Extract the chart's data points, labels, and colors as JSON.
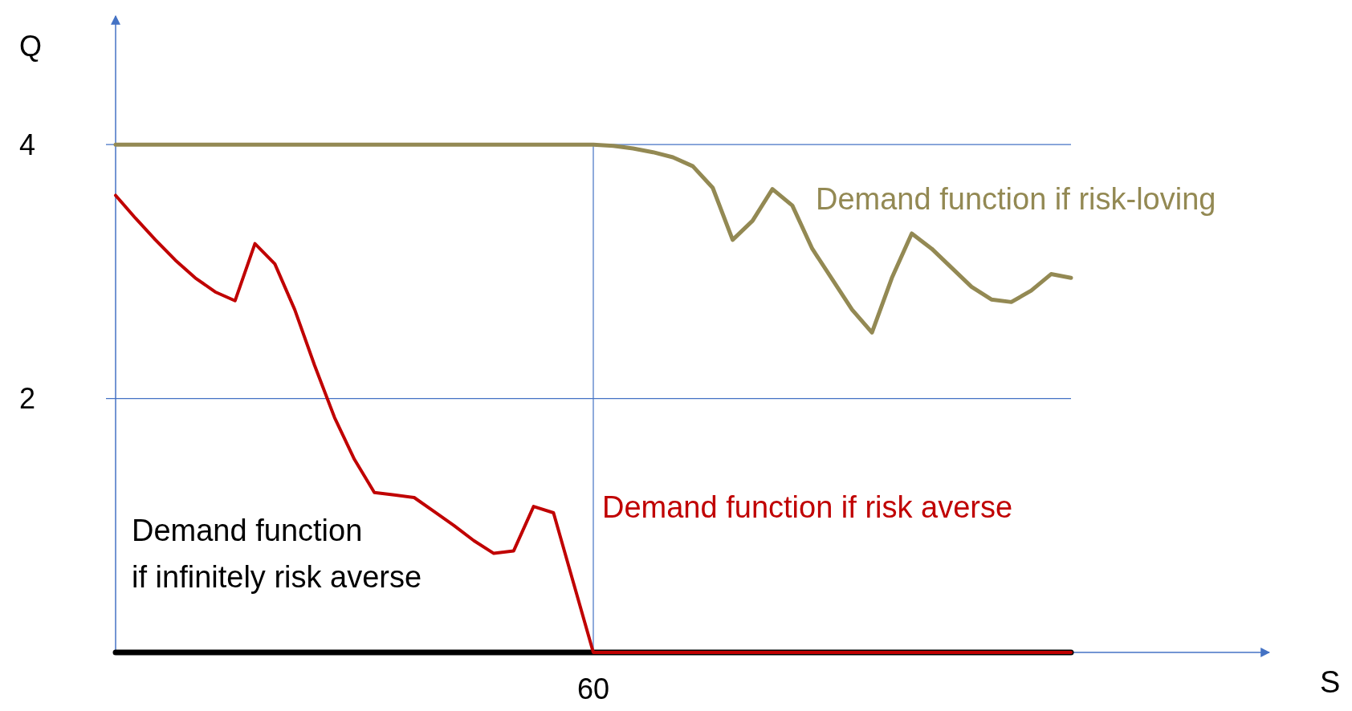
{
  "chart_data": {
    "type": "line",
    "ylabel": "Q",
    "ylim": [
      0,
      5
    ],
    "yticks": [
      2,
      4
    ],
    "grid": "y",
    "line_style": "solid",
    "categories": [
      null,
      null,
      null,
      null,
      null,
      null,
      null,
      null,
      null,
      null,
      null,
      null,
      null,
      null,
      null,
      null,
      null,
      null,
      null,
      null,
      null,
      null,
      null,
      null,
      "60",
      null,
      null,
      null,
      null,
      null,
      null,
      null,
      null,
      null,
      null,
      null,
      null,
      null,
      null,
      null,
      null,
      null,
      null,
      null,
      null,
      null,
      null,
      null,
      null
    ],
    "series": [
      {
        "color": "#000000",
        "values": [
          0,
          0,
          0,
          0,
          0,
          0,
          0,
          0,
          0,
          0,
          0,
          0,
          0,
          0,
          0,
          0,
          0,
          0,
          0,
          0,
          0,
          0,
          0,
          0,
          0,
          0,
          0,
          0,
          0,
          0,
          0,
          0,
          0,
          0,
          0,
          0,
          0,
          0,
          0,
          0,
          0,
          0,
          0,
          0,
          0,
          0,
          0,
          0,
          0
        ]
      },
      {
        "color": "#c00000",
        "values": [
          3.6,
          3.42,
          3.25,
          3.09,
          2.95,
          2.84,
          2.77,
          3.22,
          3.06,
          2.7,
          2.26,
          1.85,
          1.52,
          1.26,
          1.24,
          1.22,
          1.11,
          1.0,
          0.88,
          0.78,
          0.8,
          1.15,
          1.1,
          0.55,
          0,
          0,
          0,
          0,
          0,
          0,
          0,
          0,
          0,
          0,
          0,
          0,
          0,
          0,
          0,
          0,
          0,
          0,
          0,
          0,
          0,
          0,
          0,
          0,
          0
        ]
      },
      {
        "color": "#938953",
        "values": [
          4,
          4,
          4,
          4,
          4,
          4,
          4,
          4,
          4,
          4,
          4,
          4,
          4,
          4,
          4,
          4,
          4,
          4,
          4,
          4,
          4,
          4,
          4,
          4,
          4,
          3.99,
          3.97,
          3.94,
          3.9,
          3.83,
          3.66,
          3.25,
          3.4,
          3.65,
          3.52,
          3.18,
          2.94,
          2.7,
          2.52,
          2.95,
          3.3,
          3.18,
          3.03,
          2.88,
          2.78,
          2.76,
          2.85,
          2.98,
          2.95
        ]
      }
    ],
    "ref_lines": [
      {
        "axis": "x",
        "value": "60"
      }
    ],
    "annotations": [
      "Demand function\nif infinitely risk averse",
      "Demand function if risk averse",
      "Demand function if risk-loving",
      "S"
    ]
  }
}
